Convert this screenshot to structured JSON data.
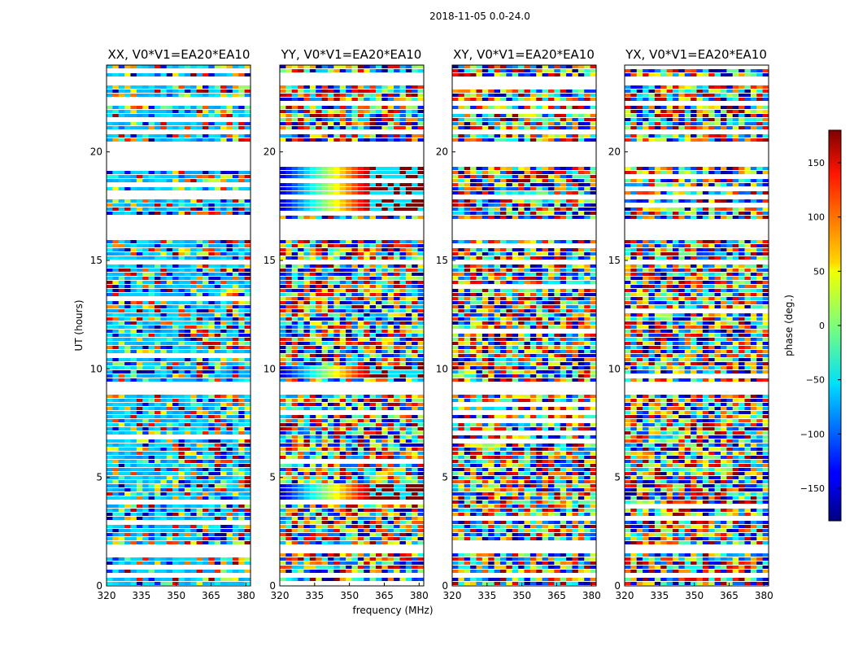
{
  "chart_data": {
    "type": "heatmap",
    "suptitle": "2018-11-05 0.0-24.0",
    "xlabel": "frequency (MHz)",
    "ylabel": "UT (hours)",
    "colorbar": {
      "label": "phase (deg.)",
      "range": [
        -180,
        180
      ],
      "ticks": [
        -150,
        -100,
        -50,
        0,
        50,
        100,
        150
      ],
      "tick_labels": [
        "−150",
        "−100",
        "−50",
        "0",
        "50",
        "100",
        "150"
      ],
      "colormap": "jet"
    },
    "xlim": [
      320,
      382
    ],
    "xticks": [
      320,
      335,
      350,
      365,
      380
    ],
    "xtick_labels": [
      "320",
      "335",
      "350",
      "365",
      "380"
    ],
    "ylim": [
      0,
      24
    ],
    "yticks": [
      0,
      5,
      10,
      15,
      20
    ],
    "ytick_labels": [
      "0",
      "5",
      "10",
      "15",
      "20"
    ],
    "no_data_ut_ranges": [
      [
        0.42,
        0.55
      ],
      [
        1.5,
        1.85
      ],
      [
        2.05,
        2.15
      ],
      [
        3.3,
        3.45
      ],
      [
        5.8,
        5.9
      ],
      [
        8.9,
        9.35
      ],
      [
        14.8,
        14.95
      ],
      [
        15.95,
        16.95
      ],
      [
        17.75,
        17.95
      ],
      [
        19.35,
        20.35
      ],
      [
        20.75,
        20.95
      ],
      [
        22.1,
        22.25
      ],
      [
        23.15,
        23.45
      ]
    ],
    "panels": [
      {
        "title": "XX, V0*V1=EA20*EA10",
        "pattern": "mostly cyan, near -75 deg"
      },
      {
        "title": "YY, V0*V1=EA20*EA10",
        "pattern": "phase gradient across band"
      },
      {
        "title": "XY, V0*V1=EA20*EA10",
        "pattern": "noisy, random phase"
      },
      {
        "title": "YX, V0*V1=EA20*EA10",
        "pattern": "noisy, random phase"
      }
    ]
  }
}
